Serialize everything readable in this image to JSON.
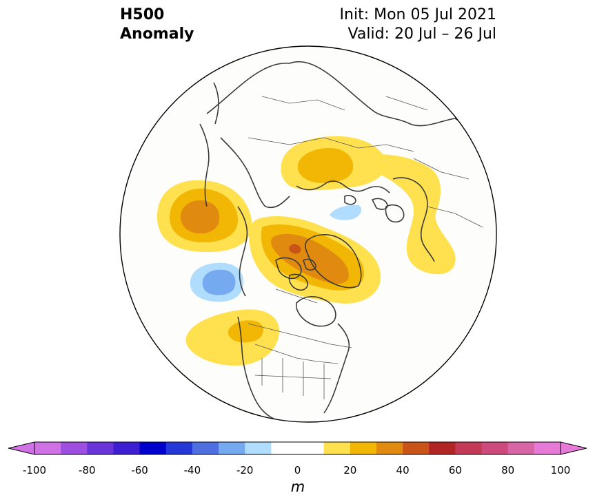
{
  "header": {
    "variable": "H500",
    "field": "Anomaly",
    "init": "Init: Mon 05 Jul 2021",
    "valid": "Valid: 20 Jul – 26 Jul"
  },
  "colorbar": {
    "unit": "m",
    "ticks": [
      "-100",
      "-80",
      "-60",
      "-40",
      "-20",
      "0",
      "20",
      "40",
      "60",
      "80",
      "100"
    ],
    "levels": [
      -100,
      -90,
      -80,
      -70,
      -60,
      -50,
      -40,
      -30,
      -20,
      -10,
      10,
      20,
      30,
      40,
      50,
      60,
      70,
      80,
      90,
      100
    ],
    "colors": [
      "#d072e6",
      "#9e4fe0",
      "#6a35d8",
      "#3d1ed0",
      "#0000cc",
      "#2338d6",
      "#4f6ee0",
      "#76aaf0",
      "#b0dcfe",
      "#ffffff",
      "#ffe04f",
      "#f2b705",
      "#e08a10",
      "#c95418",
      "#b12525",
      "#c23a55",
      "#cc4b7c",
      "#d865a6",
      "#e67ad6"
    ],
    "over_color": "#e67ad6",
    "under_color": "#d072e6"
  },
  "map": {
    "projection": "north polar stereographic",
    "background": "#fdfdfb",
    "anomalies": [
      {
        "region": "North Pacific",
        "sign": "positive",
        "max_level": 40
      },
      {
        "region": "Northwest Canada / Beaufort",
        "sign": "positive",
        "max_level": 50
      },
      {
        "region": "Barents / Kara Sea",
        "sign": "positive",
        "max_level": 40
      },
      {
        "region": "Europe / Scandinavia",
        "sign": "positive",
        "max_level": 20
      },
      {
        "region": "Western North America",
        "sign": "positive",
        "max_level": 30
      },
      {
        "region": "Northeast Pacific",
        "sign": "negative",
        "max_level": -30
      },
      {
        "region": "Central Arctic",
        "sign": "negative",
        "max_level": -20
      }
    ]
  }
}
